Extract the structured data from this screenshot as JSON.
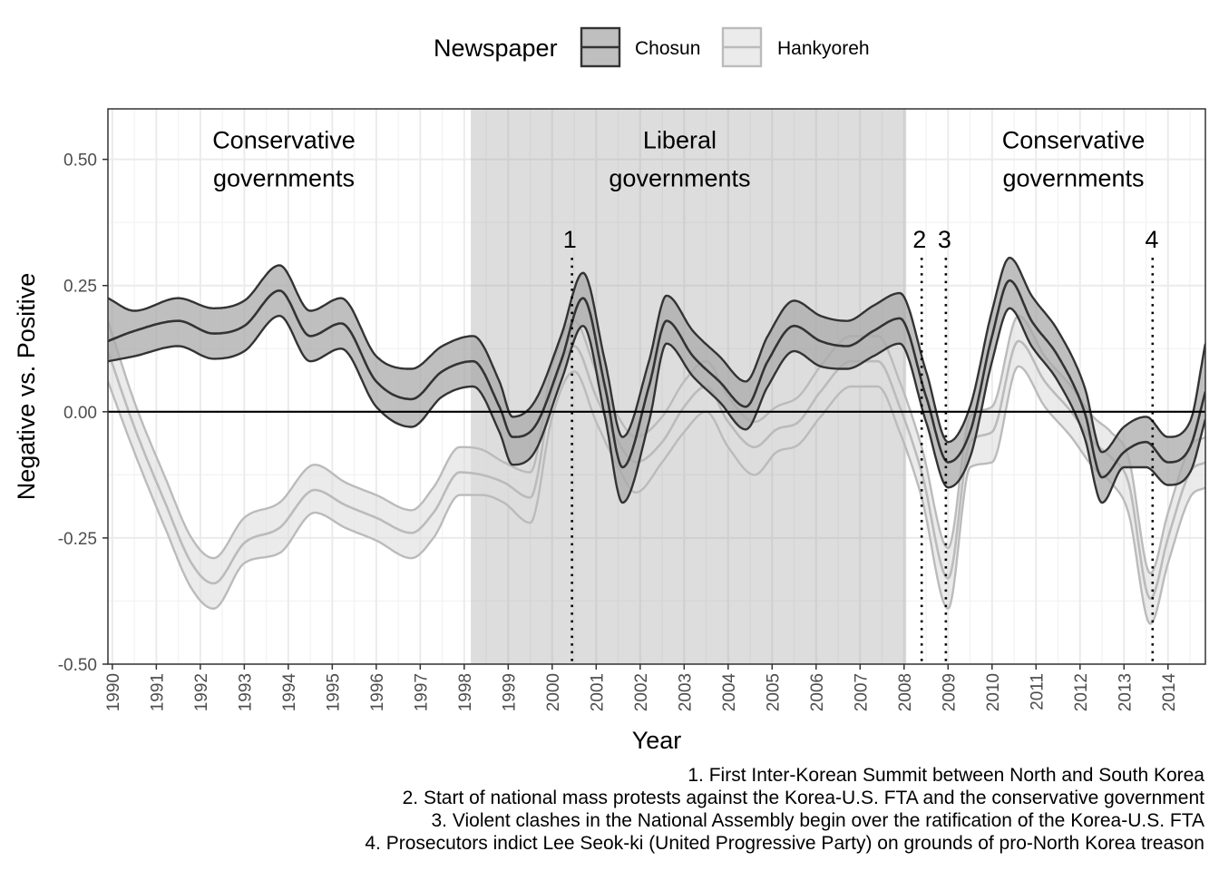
{
  "chart_data": {
    "type": "line",
    "xlabel": "Year",
    "ylabel": "Negative vs. Positive",
    "xlim": [
      1989.9,
      2014.85
    ],
    "ylim": [
      -0.5,
      0.6
    ],
    "x_ticks": [
      1990,
      1991,
      1992,
      1993,
      1994,
      1995,
      1996,
      1997,
      1998,
      1999,
      2000,
      2001,
      2002,
      2003,
      2004,
      2005,
      2006,
      2007,
      2008,
      2009,
      2010,
      2011,
      2012,
      2013,
      2014
    ],
    "y_ticks": [
      -0.5,
      -0.25,
      0.0,
      0.25,
      0.5
    ],
    "y_tick_labels": [
      "-0.50",
      "-0.25",
      "0.00",
      "0.25",
      "0.50"
    ],
    "grid": true,
    "legend": {
      "title": "Newspaper",
      "position": "top"
    },
    "reference_line": 0.0,
    "shaded_periods": [
      {
        "start": 1998.15,
        "end": 2008.05,
        "label_line1": "Liberal",
        "label_line2": "governments",
        "label_x": 2002.9
      }
    ],
    "period_labels": [
      {
        "label_line1": "Conservative",
        "label_line2": "governments",
        "x": 1993.9
      },
      {
        "label_line1": "Liberal",
        "label_line2": "governments",
        "x": 2002.9
      },
      {
        "label_line1": "Conservative",
        "label_line2": "governments",
        "x": 2011.85
      }
    ],
    "events": [
      {
        "id": "1",
        "x": 2000.45,
        "label_x": 2000.4
      },
      {
        "id": "2",
        "x": 2008.4,
        "label_x": 2008.35
      },
      {
        "id": "3",
        "x": 2008.95,
        "label_x": 2008.92
      },
      {
        "id": "4",
        "x": 2013.65,
        "label_x": 2013.63
      }
    ],
    "series": [
      {
        "name": "Chosun",
        "line_color": "#333333",
        "ribbon_color": "#aaaaaa",
        "ribbon_opacity": 0.75,
        "x": [
          1989.9,
          1990.5,
          1991.5,
          1992.3,
          1993.0,
          1993.8,
          1994.5,
          1995.2,
          1996.0,
          1996.8,
          1997.5,
          1998.2,
          1998.8,
          1999.1,
          1999.6,
          2000.2,
          2000.7,
          2001.2,
          2001.6,
          2002.2,
          2002.6,
          2003.2,
          2003.8,
          2004.4,
          2004.9,
          2005.5,
          2006.1,
          2006.7,
          2007.3,
          2007.9,
          2008.5,
          2009.0,
          2009.5,
          2010.0,
          2010.4,
          2010.9,
          2011.5,
          2012.1,
          2012.5,
          2013.0,
          2013.5,
          2014.0,
          2014.5,
          2014.85
        ],
        "y": [
          0.14,
          0.16,
          0.18,
          0.155,
          0.17,
          0.24,
          0.15,
          0.175,
          0.06,
          0.025,
          0.08,
          0.1,
          0.01,
          -0.05,
          -0.03,
          0.1,
          0.225,
          0.05,
          -0.11,
          0.05,
          0.18,
          0.11,
          0.06,
          0.01,
          0.1,
          0.17,
          0.14,
          0.13,
          0.16,
          0.185,
          0.03,
          -0.1,
          -0.04,
          0.15,
          0.26,
          0.18,
          0.11,
          0.0,
          -0.13,
          -0.08,
          -0.06,
          -0.1,
          -0.07,
          0.04
        ],
        "lower": [
          0.1,
          0.11,
          0.13,
          0.105,
          0.12,
          0.19,
          0.1,
          0.125,
          0.01,
          -0.03,
          0.03,
          0.05,
          -0.04,
          -0.105,
          -0.08,
          0.06,
          0.17,
          -0.01,
          -0.18,
          -0.02,
          0.135,
          0.07,
          0.02,
          -0.035,
          0.05,
          0.12,
          0.09,
          0.085,
          0.11,
          0.135,
          -0.02,
          -0.15,
          -0.09,
          0.1,
          0.205,
          0.13,
          0.06,
          -0.05,
          -0.18,
          -0.11,
          -0.11,
          -0.145,
          -0.12,
          -0.015
        ],
        "upper": [
          0.225,
          0.2,
          0.225,
          0.205,
          0.22,
          0.29,
          0.2,
          0.225,
          0.11,
          0.085,
          0.13,
          0.15,
          0.06,
          -0.01,
          0.02,
          0.15,
          0.275,
          0.1,
          -0.05,
          0.1,
          0.23,
          0.16,
          0.11,
          0.06,
          0.15,
          0.22,
          0.19,
          0.18,
          0.21,
          0.235,
          0.08,
          -0.06,
          0.01,
          0.2,
          0.305,
          0.23,
          0.16,
          0.05,
          -0.08,
          -0.03,
          -0.01,
          -0.05,
          -0.02,
          0.135
        ]
      },
      {
        "name": "Hankyoreh",
        "line_color": "#bbbbbb",
        "ribbon_color": "#dddddd",
        "ribbon_opacity": 0.6,
        "x": [
          1989.9,
          1990.5,
          1991.2,
          1991.8,
          1992.3,
          1993.0,
          1993.8,
          1994.6,
          1995.3,
          1996.0,
          1996.8,
          1997.3,
          1997.9,
          1998.4,
          1998.9,
          1999.5,
          2000.0,
          2000.5,
          2001.0,
          2001.5,
          2001.9,
          2002.5,
          2003.0,
          2003.5,
          2004.0,
          2004.6,
          2005.1,
          2005.6,
          2006.1,
          2006.8,
          2007.4,
          2007.9,
          2008.4,
          2009.0,
          2009.5,
          2010.0,
          2010.6,
          2011.2,
          2011.8,
          2012.3,
          2012.7,
          2013.1,
          2013.6,
          2014.0,
          2014.5,
          2014.85
        ],
        "y": [
          0.12,
          -0.03,
          -0.18,
          -0.3,
          -0.34,
          -0.26,
          -0.23,
          -0.155,
          -0.185,
          -0.21,
          -0.24,
          -0.2,
          -0.12,
          -0.125,
          -0.14,
          -0.17,
          0.04,
          0.13,
          0.03,
          -0.06,
          -0.1,
          -0.06,
          0.01,
          0.05,
          -0.02,
          -0.07,
          -0.035,
          -0.02,
          0.04,
          0.1,
          0.1,
          0.01,
          -0.12,
          -0.33,
          -0.06,
          -0.04,
          0.14,
          0.06,
          0.0,
          -0.06,
          -0.09,
          -0.14,
          -0.37,
          -0.25,
          -0.12,
          -0.1
        ],
        "lower": [
          0.06,
          -0.08,
          -0.23,
          -0.35,
          -0.39,
          -0.3,
          -0.28,
          -0.2,
          -0.23,
          -0.255,
          -0.29,
          -0.25,
          -0.165,
          -0.165,
          -0.18,
          -0.22,
          -0.01,
          0.08,
          -0.02,
          -0.11,
          -0.16,
          -0.1,
          -0.04,
          0.0,
          -0.07,
          -0.125,
          -0.08,
          -0.065,
          -0.01,
          0.05,
          0.05,
          -0.04,
          -0.17,
          -0.39,
          -0.11,
          -0.1,
          0.09,
          0.01,
          -0.05,
          -0.11,
          -0.14,
          -0.2,
          -0.42,
          -0.3,
          -0.17,
          -0.15
        ],
        "upper": [
          0.18,
          0.02,
          -0.13,
          -0.25,
          -0.29,
          -0.21,
          -0.18,
          -0.105,
          -0.14,
          -0.165,
          -0.195,
          -0.15,
          -0.07,
          -0.075,
          -0.1,
          -0.12,
          0.09,
          0.18,
          0.08,
          -0.01,
          -0.05,
          -0.01,
          0.06,
          0.1,
          0.03,
          -0.02,
          0.01,
          0.03,
          0.09,
          0.15,
          0.15,
          0.06,
          -0.07,
          -0.27,
          -0.01,
          0.01,
          0.19,
          0.11,
          0.05,
          -0.01,
          -0.04,
          -0.09,
          -0.32,
          -0.2,
          -0.07,
          -0.05
        ]
      }
    ],
    "captions": [
      "1. First Inter-Korean Summit between North and South Korea",
      "2. Start of national mass protests against the Korea-U.S. FTA and the conservative government",
      "3. Violent clashes in the National Assembly begin over the ratification of the Korea-U.S. FTA",
      "4. Prosecutors indict Lee Seok-ki (United Progressive Party) on grounds of pro-North Korea treason"
    ]
  }
}
